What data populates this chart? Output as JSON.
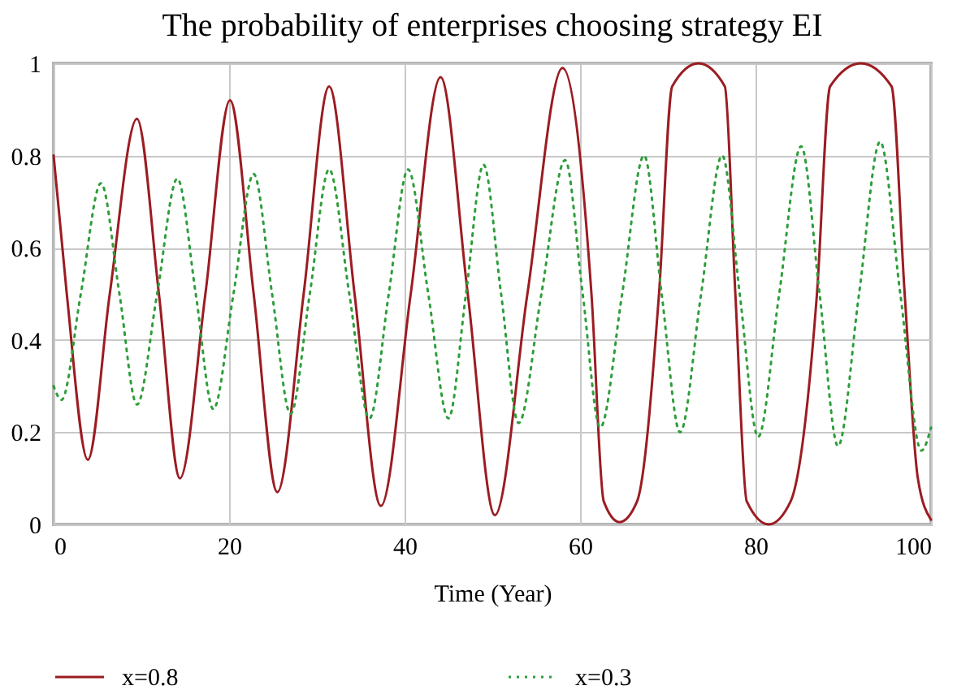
{
  "chart_data": {
    "type": "line",
    "title": "The probability of enterprises choosing strategy EI",
    "xlabel": "Time (Year)",
    "xlim": [
      0,
      100
    ],
    "xticks": [
      0,
      20,
      40,
      60,
      80,
      100
    ],
    "ylim": [
      0,
      1
    ],
    "yticks": [
      0,
      0.2,
      0.4,
      0.6,
      0.8,
      1
    ],
    "grid": true,
    "legend": "bottom",
    "series": [
      {
        "name": "x=0.8",
        "color": "#9b1c22",
        "line_style": "solid",
        "x": [
          0,
          1.5,
          3.9,
          6.4,
          9.5,
          12,
          14.4,
          17.3,
          20.1,
          22.8,
          25.5,
          28.5,
          31.4,
          34.3,
          37.3,
          40.7,
          44.1,
          47.2,
          50.3,
          54,
          58,
          61.3,
          62.7,
          64.5,
          66.5,
          69,
          70.5,
          73.5,
          76.5,
          77.7,
          79,
          81.5,
          84,
          87,
          88.5,
          92,
          95.5,
          97,
          98.5,
          100
        ],
        "values": [
          0.8,
          0.5,
          0.14,
          0.5,
          0.88,
          0.5,
          0.1,
          0.5,
          0.92,
          0.5,
          0.07,
          0.5,
          0.95,
          0.5,
          0.04,
          0.5,
          0.97,
          0.5,
          0.02,
          0.5,
          0.99,
          0.5,
          0.05,
          0.005,
          0.05,
          0.5,
          0.95,
          1,
          0.95,
          0.5,
          0.05,
          0,
          0.05,
          0.5,
          0.95,
          1,
          0.95,
          0.5,
          0.1,
          0.01
        ]
      },
      {
        "name": "x=0.3",
        "color": "#2e9e3a",
        "line_style": "dotted",
        "x": [
          0,
          0.9,
          3.1,
          5.4,
          7.5,
          9.5,
          11.8,
          14.1,
          16.2,
          18.2,
          20.5,
          22.8,
          24.9,
          27,
          29.2,
          31.4,
          33.7,
          36,
          38.2,
          40.4,
          42.7,
          45,
          47,
          49,
          51,
          53,
          55.6,
          58.3,
          60.3,
          62.3,
          64.8,
          67.3,
          69.3,
          71.4,
          73.8,
          76.2,
          78.2,
          80.3,
          82.7,
          85.2,
          87.3,
          89.4,
          91.8,
          94.2,
          96.5,
          98.9,
          100
        ],
        "values": [
          0.3,
          0.27,
          0.5,
          0.74,
          0.5,
          0.26,
          0.5,
          0.75,
          0.5,
          0.25,
          0.5,
          0.76,
          0.5,
          0.24,
          0.5,
          0.77,
          0.5,
          0.23,
          0.5,
          0.77,
          0.5,
          0.23,
          0.5,
          0.78,
          0.5,
          0.22,
          0.5,
          0.79,
          0.5,
          0.21,
          0.5,
          0.8,
          0.5,
          0.2,
          0.5,
          0.8,
          0.5,
          0.19,
          0.5,
          0.82,
          0.5,
          0.17,
          0.5,
          0.83,
          0.5,
          0.16,
          0.21
        ]
      }
    ]
  }
}
